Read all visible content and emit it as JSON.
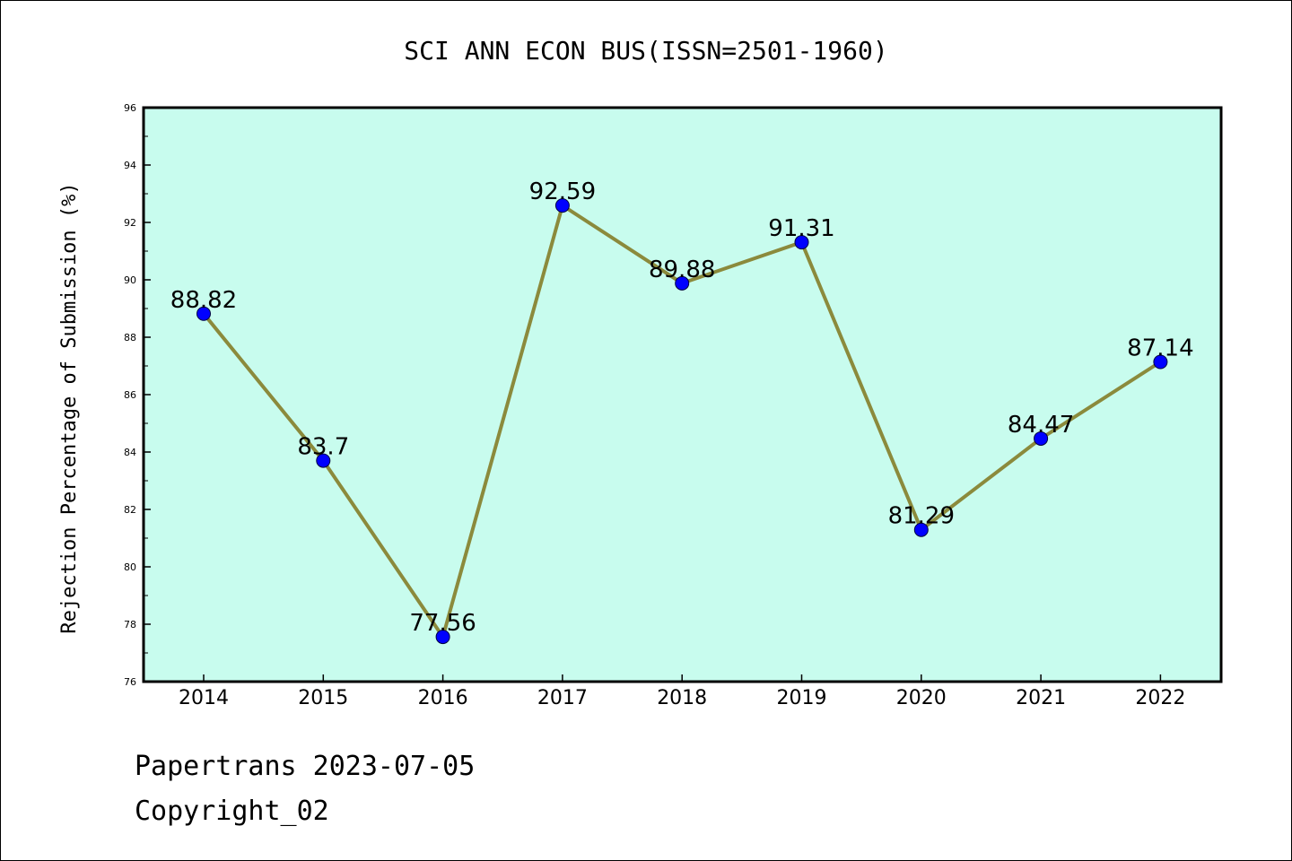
{
  "chart_data": {
    "type": "line",
    "title": "SCI ANN ECON BUS(ISSN=2501-1960)",
    "xlabel": "",
    "ylabel": "Rejection Percentage of Submission (%)",
    "categories": [
      "2014",
      "2015",
      "2016",
      "2017",
      "2018",
      "2019",
      "2020",
      "2021",
      "2022"
    ],
    "values": [
      88.82,
      83.7,
      77.56,
      92.59,
      89.88,
      91.31,
      81.29,
      84.47,
      87.14
    ],
    "data_labels": [
      "88.82",
      "83.7",
      "77.56",
      "92.59",
      "89.88",
      "91.31",
      "81.29",
      "84.47",
      "87.14"
    ],
    "ylim": [
      76,
      96
    ],
    "yticks": [
      "76",
      "78",
      "80",
      "82",
      "84",
      "86",
      "88",
      "90",
      "92",
      "94",
      "96"
    ],
    "grid": false,
    "legend": "none",
    "colors": {
      "plot_background": "#c8fcee",
      "line": "#8b8a3c",
      "marker": "#0000ff"
    }
  },
  "footer": {
    "line1": "Papertrans 2023-07-05",
    "line2": "Copyright_02"
  }
}
